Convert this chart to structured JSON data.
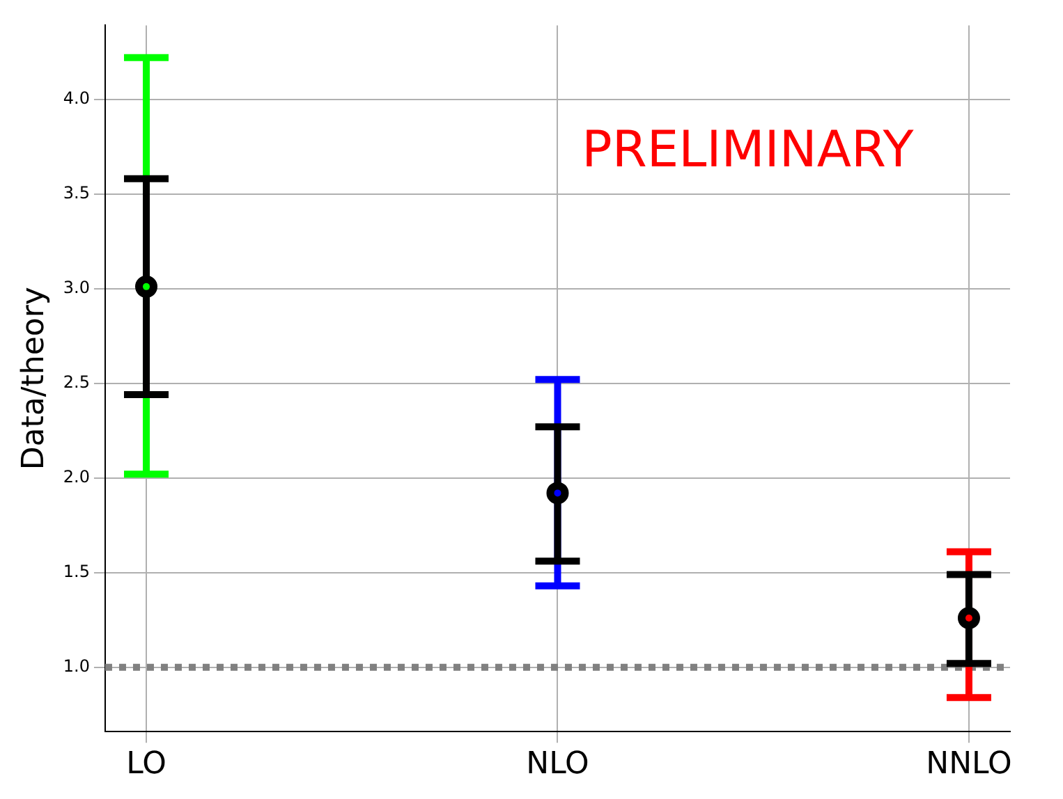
{
  "chart_data": {
    "type": "scatter",
    "ylabel": "Data/theory",
    "categories": [
      "LO",
      "NLO",
      "NNLO"
    ],
    "series": [
      {
        "marker": "circle",
        "color": "#000000",
        "colors": [
          "#00ff00",
          "#0000ff",
          "#ff0000"
        ],
        "values": [
          3.01,
          1.92,
          1.26
        ],
        "errors": [
          [
            2.02,
            4.22
          ],
          [
            1.43,
            2.52
          ],
          [
            0.84,
            1.61
          ]
        ]
      },
      {
        "marker": "circle",
        "color": "#000000",
        "values": [
          3.01,
          1.92,
          1.26
        ],
        "errors": [
          [
            2.44,
            3.58
          ],
          [
            1.56,
            2.27
          ],
          [
            1.02,
            1.49
          ]
        ]
      }
    ],
    "ylim": [
      0.66,
      4.39
    ],
    "yticks": [
      {
        "value": 1,
        "label": "1.0"
      },
      {
        "value": 1.5,
        "label": "1.5"
      },
      {
        "value": 2,
        "label": "2.0"
      },
      {
        "value": 2.5,
        "label": "2.5"
      },
      {
        "value": 3,
        "label": "3.0"
      },
      {
        "value": 3.5,
        "label": "3.5"
      },
      {
        "value": 4,
        "label": "4.0"
      }
    ],
    "grid": true,
    "ref_lines": [
      {
        "axis": "y",
        "value": 1,
        "color": "#808080",
        "line_style": "dotted"
      }
    ],
    "annotations": [
      "PRELIMINARY"
    ]
  }
}
